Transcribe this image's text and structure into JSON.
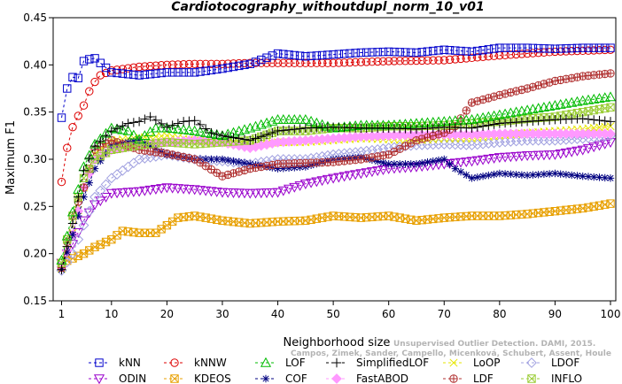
{
  "chart_data": {
    "type": "line",
    "title": "Cardiotocography_withoutdupl_norm_10_v01",
    "xlabel": "Neighborhood size",
    "ylabel": "Maximum F1",
    "xlim": [
      1,
      100
    ],
    "ylim": [
      0.15,
      0.45
    ],
    "x_ticks": [
      1,
      10,
      20,
      30,
      40,
      50,
      60,
      70,
      80,
      90,
      100
    ],
    "y_ticks": [
      "0.15",
      "0.20",
      "0.25",
      "0.30",
      "0.35",
      "0.40",
      "0.45"
    ],
    "watermark": [
      "Unsupervised Outlier Detection. DAMI, 2015.",
      "Campos, Zimek, Sander, Campello, Micenková, Schubert, Assent, Houle"
    ],
    "legend_position": "bottom",
    "series": [
      {
        "name": "kNN",
        "color": "#0000cc",
        "marker": "square",
        "points": [
          [
            1,
            0.344
          ],
          [
            2,
            0.375
          ],
          [
            3,
            0.387
          ],
          [
            4,
            0.386
          ],
          [
            5,
            0.404
          ],
          [
            6,
            0.406
          ],
          [
            7,
            0.407
          ],
          [
            8,
            0.402
          ],
          [
            10,
            0.392
          ],
          [
            15,
            0.389
          ],
          [
            20,
            0.392
          ],
          [
            25,
            0.392
          ],
          [
            30,
            0.396
          ],
          [
            35,
            0.401
          ],
          [
            40,
            0.412
          ],
          [
            45,
            0.409
          ],
          [
            50,
            0.411
          ],
          [
            55,
            0.413
          ],
          [
            60,
            0.414
          ],
          [
            65,
            0.413
          ],
          [
            70,
            0.416
          ],
          [
            75,
            0.414
          ],
          [
            80,
            0.418
          ],
          [
            85,
            0.418
          ],
          [
            90,
            0.417
          ],
          [
            95,
            0.418
          ],
          [
            100,
            0.418
          ]
        ]
      },
      {
        "name": "kNNW",
        "color": "#dd0000",
        "marker": "circle",
        "points": [
          [
            1,
            0.276
          ],
          [
            2,
            0.312
          ],
          [
            3,
            0.334
          ],
          [
            4,
            0.346
          ],
          [
            5,
            0.357
          ],
          [
            6,
            0.372
          ],
          [
            7,
            0.382
          ],
          [
            8,
            0.389
          ],
          [
            10,
            0.394
          ],
          [
            15,
            0.398
          ],
          [
            20,
            0.4
          ],
          [
            25,
            0.401
          ],
          [
            30,
            0.401
          ],
          [
            35,
            0.402
          ],
          [
            40,
            0.402
          ],
          [
            50,
            0.402
          ],
          [
            60,
            0.404
          ],
          [
            70,
            0.405
          ],
          [
            80,
            0.41
          ],
          [
            90,
            0.414
          ],
          [
            100,
            0.416
          ]
        ]
      },
      {
        "name": "LOF",
        "color": "#00bb00",
        "marker": "triangle-up",
        "points": [
          [
            1,
            0.193
          ],
          [
            3,
            0.244
          ],
          [
            5,
            0.292
          ],
          [
            7,
            0.316
          ],
          [
            10,
            0.333
          ],
          [
            13,
            0.33
          ],
          [
            15,
            0.321
          ],
          [
            18,
            0.333
          ],
          [
            20,
            0.333
          ],
          [
            25,
            0.33
          ],
          [
            30,
            0.325
          ],
          [
            35,
            0.333
          ],
          [
            40,
            0.342
          ],
          [
            45,
            0.342
          ],
          [
            50,
            0.333
          ],
          [
            55,
            0.336
          ],
          [
            60,
            0.336
          ],
          [
            65,
            0.338
          ],
          [
            70,
            0.34
          ],
          [
            75,
            0.342
          ],
          [
            80,
            0.347
          ],
          [
            85,
            0.352
          ],
          [
            90,
            0.357
          ],
          [
            95,
            0.362
          ],
          [
            100,
            0.366
          ]
        ]
      },
      {
        "name": "SimplifiedLOF",
        "color": "#000000",
        "marker": "plus",
        "points": [
          [
            1,
            0.183
          ],
          [
            3,
            0.232
          ],
          [
            5,
            0.288
          ],
          [
            7,
            0.314
          ],
          [
            10,
            0.33
          ],
          [
            13,
            0.338
          ],
          [
            15,
            0.34
          ],
          [
            17,
            0.345
          ],
          [
            20,
            0.334
          ],
          [
            23,
            0.34
          ],
          [
            25,
            0.341
          ],
          [
            28,
            0.328
          ],
          [
            30,
            0.325
          ],
          [
            35,
            0.32
          ],
          [
            40,
            0.33
          ],
          [
            45,
            0.333
          ],
          [
            50,
            0.334
          ],
          [
            55,
            0.333
          ],
          [
            60,
            0.333
          ],
          [
            65,
            0.332
          ],
          [
            70,
            0.334
          ],
          [
            75,
            0.333
          ],
          [
            80,
            0.338
          ],
          [
            85,
            0.34
          ],
          [
            90,
            0.342
          ],
          [
            95,
            0.343
          ],
          [
            100,
            0.34
          ]
        ]
      },
      {
        "name": "LoOP",
        "color": "#e6e600",
        "marker": "x",
        "points": [
          [
            1,
            0.184
          ],
          [
            3,
            0.222
          ],
          [
            5,
            0.27
          ],
          [
            7,
            0.306
          ],
          [
            10,
            0.32
          ],
          [
            15,
            0.323
          ],
          [
            20,
            0.325
          ],
          [
            25,
            0.32
          ],
          [
            30,
            0.318
          ],
          [
            35,
            0.315
          ],
          [
            40,
            0.318
          ],
          [
            45,
            0.318
          ],
          [
            50,
            0.32
          ],
          [
            55,
            0.322
          ],
          [
            60,
            0.321
          ],
          [
            65,
            0.32
          ],
          [
            70,
            0.322
          ],
          [
            75,
            0.322
          ],
          [
            80,
            0.325
          ],
          [
            85,
            0.328
          ],
          [
            90,
            0.33
          ],
          [
            95,
            0.332
          ],
          [
            100,
            0.335
          ]
        ]
      },
      {
        "name": "LDOF",
        "color": "#a0a0e0",
        "marker": "diamond",
        "points": [
          [
            1,
            0.182
          ],
          [
            3,
            0.2
          ],
          [
            5,
            0.23
          ],
          [
            7,
            0.26
          ],
          [
            10,
            0.28
          ],
          [
            15,
            0.3
          ],
          [
            20,
            0.305
          ],
          [
            25,
            0.3
          ],
          [
            30,
            0.298
          ],
          [
            35,
            0.295
          ],
          [
            40,
            0.3
          ],
          [
            45,
            0.3
          ],
          [
            50,
            0.305
          ],
          [
            55,
            0.308
          ],
          [
            60,
            0.312
          ],
          [
            65,
            0.315
          ],
          [
            70,
            0.316
          ],
          [
            75,
            0.315
          ],
          [
            80,
            0.318
          ],
          [
            85,
            0.32
          ],
          [
            90,
            0.32
          ],
          [
            95,
            0.322
          ],
          [
            100,
            0.325
          ]
        ]
      },
      {
        "name": "ODIN",
        "color": "#9900cc",
        "marker": "triangle-down",
        "points": [
          [
            1,
            0.19
          ],
          [
            3,
            0.21
          ],
          [
            5,
            0.235
          ],
          [
            7,
            0.252
          ],
          [
            10,
            0.264
          ],
          [
            15,
            0.266
          ],
          [
            20,
            0.27
          ],
          [
            25,
            0.268
          ],
          [
            30,
            0.265
          ],
          [
            35,
            0.264
          ],
          [
            40,
            0.265
          ],
          [
            45,
            0.274
          ],
          [
            50,
            0.28
          ],
          [
            55,
            0.285
          ],
          [
            60,
            0.29
          ],
          [
            65,
            0.292
          ],
          [
            70,
            0.295
          ],
          [
            75,
            0.298
          ],
          [
            80,
            0.302
          ],
          [
            85,
            0.304
          ],
          [
            90,
            0.305
          ],
          [
            95,
            0.31
          ],
          [
            100,
            0.318
          ]
        ]
      },
      {
        "name": "KDEOS",
        "color": "#e8a000",
        "marker": "square-x",
        "points": [
          [
            1,
            0.19
          ],
          [
            3,
            0.195
          ],
          [
            5,
            0.2
          ],
          [
            7,
            0.207
          ],
          [
            10,
            0.215
          ],
          [
            12,
            0.224
          ],
          [
            15,
            0.222
          ],
          [
            18,
            0.222
          ],
          [
            20,
            0.23
          ],
          [
            22,
            0.238
          ],
          [
            25,
            0.24
          ],
          [
            30,
            0.235
          ],
          [
            35,
            0.232
          ],
          [
            40,
            0.234
          ],
          [
            45,
            0.235
          ],
          [
            50,
            0.24
          ],
          [
            55,
            0.238
          ],
          [
            60,
            0.24
          ],
          [
            65,
            0.235
          ],
          [
            70,
            0.238
          ],
          [
            75,
            0.24
          ],
          [
            80,
            0.24
          ],
          [
            85,
            0.242
          ],
          [
            90,
            0.245
          ],
          [
            95,
            0.248
          ],
          [
            100,
            0.253
          ]
        ]
      },
      {
        "name": "COF",
        "color": "#000080",
        "marker": "asterisk",
        "points": [
          [
            1,
            0.183
          ],
          [
            3,
            0.22
          ],
          [
            5,
            0.26
          ],
          [
            7,
            0.29
          ],
          [
            10,
            0.315
          ],
          [
            15,
            0.32
          ],
          [
            20,
            0.305
          ],
          [
            25,
            0.3
          ],
          [
            30,
            0.3
          ],
          [
            35,
            0.295
          ],
          [
            40,
            0.29
          ],
          [
            45,
            0.292
          ],
          [
            50,
            0.3
          ],
          [
            55,
            0.302
          ],
          [
            60,
            0.295
          ],
          [
            65,
            0.295
          ],
          [
            70,
            0.3
          ],
          [
            72,
            0.29
          ],
          [
            75,
            0.28
          ],
          [
            80,
            0.285
          ],
          [
            85,
            0.283
          ],
          [
            90,
            0.285
          ],
          [
            95,
            0.282
          ],
          [
            100,
            0.28
          ]
        ]
      },
      {
        "name": "FastABOD",
        "color": "#ff99ff",
        "marker": "diamond-filled",
        "points": [
          [
            1,
            0.186
          ],
          [
            3,
            0.22
          ],
          [
            5,
            0.27
          ],
          [
            7,
            0.3
          ],
          [
            10,
            0.31
          ],
          [
            15,
            0.315
          ],
          [
            20,
            0.318
          ],
          [
            25,
            0.32
          ],
          [
            30,
            0.318
          ],
          [
            35,
            0.312
          ],
          [
            40,
            0.318
          ],
          [
            45,
            0.32
          ],
          [
            50,
            0.322
          ],
          [
            55,
            0.324
          ],
          [
            60,
            0.325
          ],
          [
            65,
            0.326
          ],
          [
            70,
            0.326
          ],
          [
            75,
            0.326
          ],
          [
            80,
            0.327
          ],
          [
            85,
            0.327
          ],
          [
            90,
            0.327
          ],
          [
            95,
            0.327
          ],
          [
            100,
            0.327
          ]
        ]
      },
      {
        "name": "LDF",
        "color": "#b03030",
        "marker": "circle-plus",
        "points": [
          [
            1,
            0.185
          ],
          [
            3,
            0.24
          ],
          [
            5,
            0.27
          ],
          [
            7,
            0.31
          ],
          [
            10,
            0.32
          ],
          [
            15,
            0.31
          ],
          [
            20,
            0.306
          ],
          [
            25,
            0.3
          ],
          [
            30,
            0.282
          ],
          [
            35,
            0.29
          ],
          [
            40,
            0.295
          ],
          [
            45,
            0.296
          ],
          [
            50,
            0.297
          ],
          [
            55,
            0.3
          ],
          [
            60,
            0.305
          ],
          [
            65,
            0.32
          ],
          [
            70,
            0.328
          ],
          [
            72,
            0.335
          ],
          [
            75,
            0.36
          ],
          [
            80,
            0.368
          ],
          [
            85,
            0.375
          ],
          [
            90,
            0.383
          ],
          [
            95,
            0.388
          ],
          [
            100,
            0.391
          ]
        ]
      },
      {
        "name": "INFLO",
        "color": "#99cc33",
        "marker": "square-x",
        "points": [
          [
            1,
            0.19
          ],
          [
            3,
            0.24
          ],
          [
            5,
            0.28
          ],
          [
            7,
            0.3
          ],
          [
            10,
            0.31
          ],
          [
            15,
            0.315
          ],
          [
            20,
            0.318
          ],
          [
            25,
            0.316
          ],
          [
            30,
            0.318
          ],
          [
            35,
            0.32
          ],
          [
            40,
            0.33
          ],
          [
            45,
            0.33
          ],
          [
            50,
            0.333
          ],
          [
            55,
            0.333
          ],
          [
            60,
            0.335
          ],
          [
            65,
            0.335
          ],
          [
            70,
            0.336
          ],
          [
            75,
            0.338
          ],
          [
            80,
            0.34
          ],
          [
            85,
            0.343
          ],
          [
            90,
            0.345
          ],
          [
            95,
            0.35
          ],
          [
            100,
            0.355
          ]
        ]
      }
    ]
  }
}
